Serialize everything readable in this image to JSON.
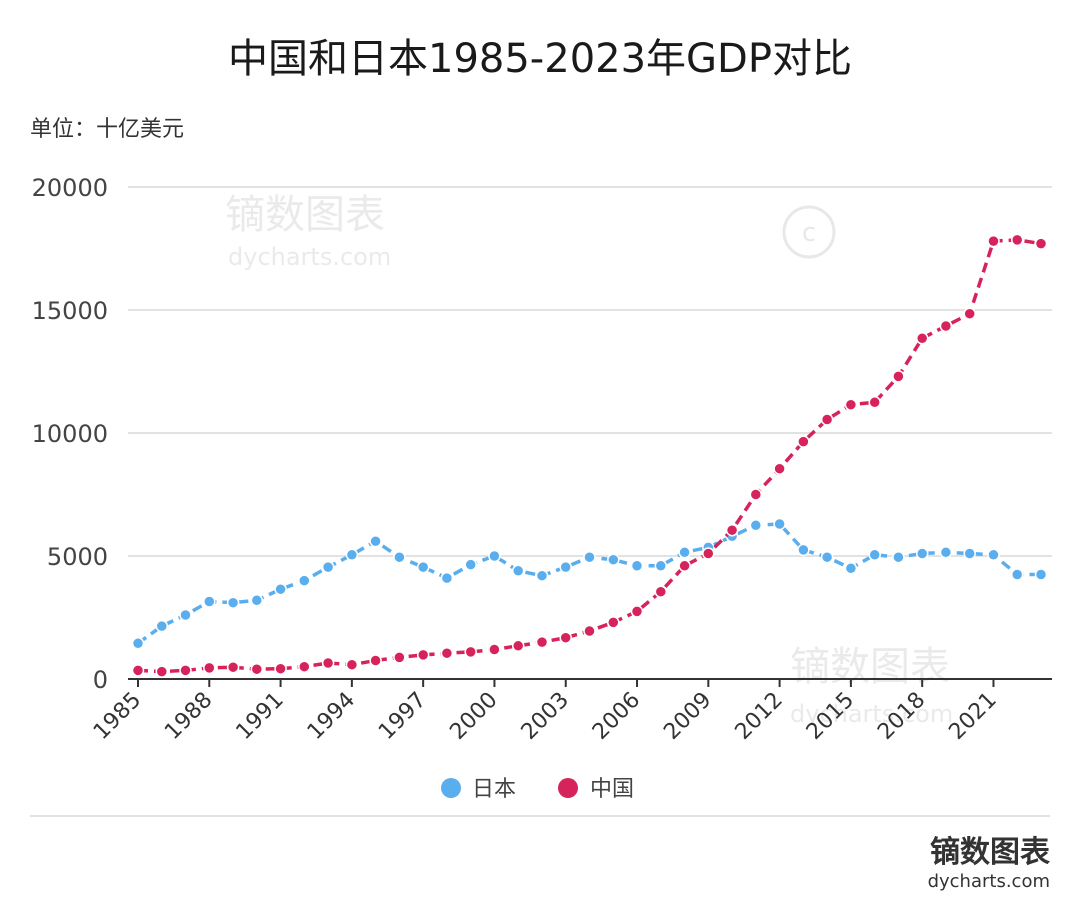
{
  "header": {
    "title": "中国和日本1985-2023年GDP对比",
    "unit": "单位：十亿美元"
  },
  "brand": {
    "name": "镝数图表",
    "url": "dycharts.com"
  },
  "watermark": {
    "name": "镝数图表",
    "url": "dycharts.com"
  },
  "colors": {
    "japan": "#5aaeee",
    "china": "#d7235b",
    "grid": "#d9d9d9",
    "axis": "#333333"
  },
  "chart_data": {
    "type": "line",
    "title": "中国和日本1985-2023年GDP对比",
    "ylabel": "单位：十亿美元",
    "ylim": [
      0,
      20000
    ],
    "yticks": [
      0,
      5000,
      10000,
      15000,
      20000
    ],
    "ytick_labels": [
      "0",
      "5000",
      "10000",
      "15000",
      "20000"
    ],
    "xtick_labels": [
      "1985",
      "1988",
      "1991",
      "1994",
      "1997",
      "2000",
      "2003",
      "2006",
      "2009",
      "2012",
      "2015",
      "2018",
      "2021"
    ],
    "x": [
      1985,
      1986,
      1987,
      1988,
      1989,
      1990,
      1991,
      1992,
      1993,
      1994,
      1995,
      1996,
      1997,
      1998,
      1999,
      2000,
      2001,
      2002,
      2003,
      2004,
      2005,
      2006,
      2007,
      2008,
      2009,
      2010,
      2011,
      2012,
      2013,
      2014,
      2015,
      2016,
      2017,
      2018,
      2019,
      2020,
      2021,
      2022,
      2023
    ],
    "series": [
      {
        "name": "日本",
        "color": "#5aaeee",
        "values": [
          1450,
          2150,
          2600,
          3150,
          3100,
          3200,
          3650,
          4000,
          4550,
          5050,
          5600,
          4950,
          4550,
          4100,
          4650,
          5000,
          4400,
          4200,
          4550,
          4950,
          4850,
          4600,
          4600,
          5150,
          5350,
          5800,
          6250,
          6300,
          5250,
          4950,
          4500,
          5050,
          4950,
          5100,
          5150,
          5100,
          5050,
          4250,
          4250
        ]
      },
      {
        "name": "中国",
        "color": "#d7235b",
        "values": [
          350,
          300,
          350,
          450,
          480,
          400,
          420,
          500,
          650,
          580,
          750,
          880,
          980,
          1050,
          1100,
          1200,
          1350,
          1500,
          1680,
          1950,
          2300,
          2750,
          3550,
          4600,
          5100,
          6050,
          7500,
          8550,
          9650,
          10550,
          11150,
          11250,
          12300,
          13850,
          14350,
          14850,
          17800,
          17850,
          17700
        ]
      }
    ],
    "legend": {
      "position": "bottom-center",
      "items": [
        "日本",
        "中国"
      ]
    },
    "grid": true
  }
}
